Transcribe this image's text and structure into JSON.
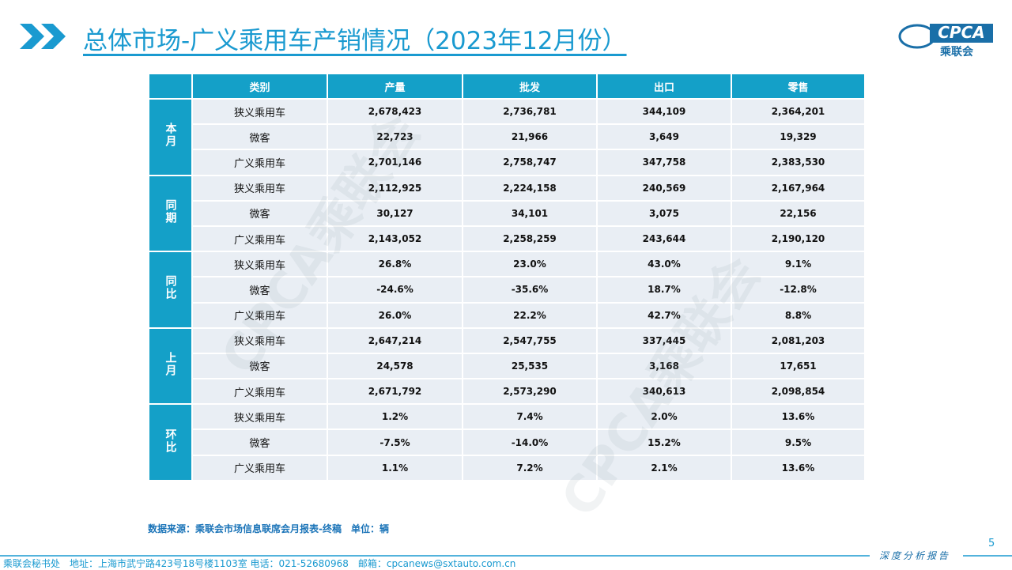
{
  "header": {
    "title": "总体市场-广义乘用车产销情况（2023年12月份）",
    "logo_text": "CPCA",
    "logo_subtext": "乘联会"
  },
  "table": {
    "columns": [
      "类别",
      "产量",
      "批发",
      "出口",
      "零售"
    ],
    "groups": [
      {
        "label": "本月",
        "rows": [
          [
            "狭义乘用车",
            "2,678,423",
            "2,736,781",
            "344,109",
            "2,364,201"
          ],
          [
            "微客",
            "22,723",
            "21,966",
            "3,649",
            "19,329"
          ],
          [
            "广义乘用车",
            "2,701,146",
            "2,758,747",
            "347,758",
            "2,383,530"
          ]
        ]
      },
      {
        "label": "同期",
        "rows": [
          [
            "狭义乘用车",
            "2,112,925",
            "2,224,158",
            "240,569",
            "2,167,964"
          ],
          [
            "微客",
            "30,127",
            "34,101",
            "3,075",
            "22,156"
          ],
          [
            "广义乘用车",
            "2,143,052",
            "2,258,259",
            "243,644",
            "2,190,120"
          ]
        ]
      },
      {
        "label": "同比",
        "rows": [
          [
            "狭义乘用车",
            "26.8%",
            "23.0%",
            "43.0%",
            "9.1%"
          ],
          [
            "微客",
            "-24.6%",
            "-35.6%",
            "18.7%",
            "-12.8%"
          ],
          [
            "广义乘用车",
            "26.0%",
            "22.2%",
            "42.7%",
            "8.8%"
          ]
        ]
      },
      {
        "label": "上月",
        "rows": [
          [
            "狭义乘用车",
            "2,647,214",
            "2,547,755",
            "337,445",
            "2,081,203"
          ],
          [
            "微客",
            "24,578",
            "25,535",
            "3,168",
            "17,651"
          ],
          [
            "广义乘用车",
            "2,671,792",
            "2,573,290",
            "340,613",
            "2,098,854"
          ]
        ]
      },
      {
        "label": "环比",
        "rows": [
          [
            "狭义乘用车",
            "1.2%",
            "7.4%",
            "2.0%",
            "13.6%"
          ],
          [
            "微客",
            "-7.5%",
            "-14.0%",
            "15.2%",
            "9.5%"
          ],
          [
            "广义乘用车",
            "1.1%",
            "7.2%",
            "2.1%",
            "13.6%"
          ]
        ]
      }
    ]
  },
  "watermark": "CPCA乘联会",
  "source": "数据来源：乘联会市场信息联席会月报表-终稿　单位：辆",
  "page_number": "5",
  "footer": {
    "tagline": "深度分析报告",
    "contact": "乘联会秘书处　地址：上海市武宁路423号18号楼1103室  电话：021-52680968　邮箱：cpcanews@sxtauto.com.cn"
  }
}
